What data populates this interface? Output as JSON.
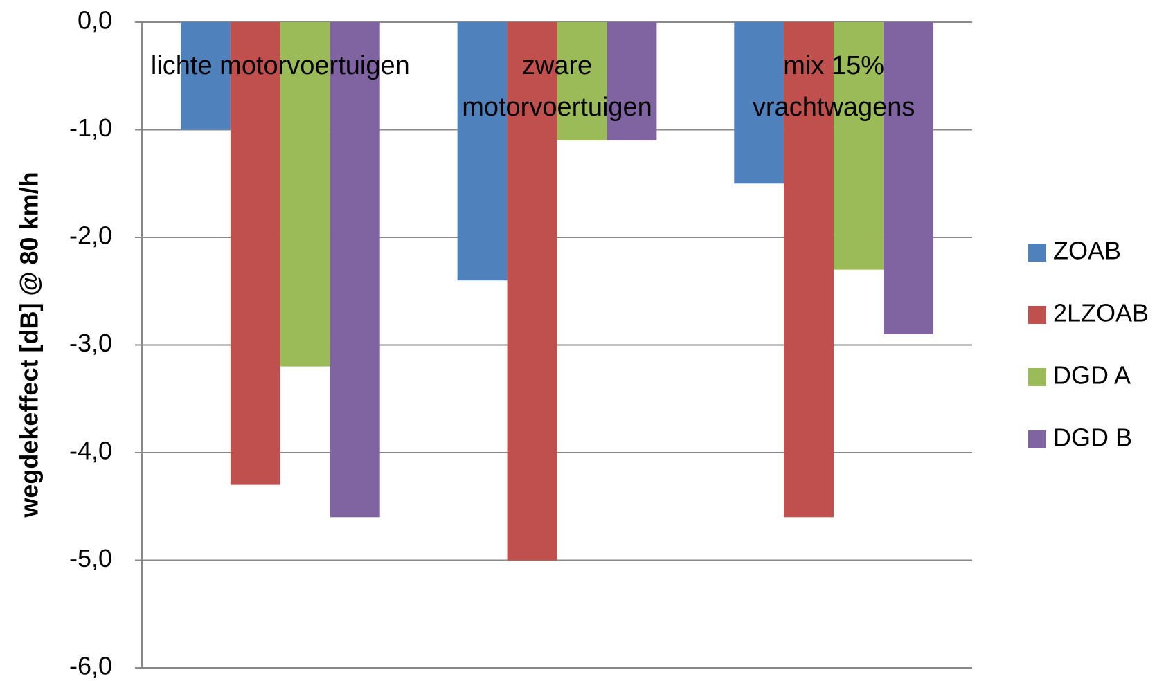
{
  "chart_data": {
    "type": "bar",
    "ylabel": "wegdekeffect [dB] @ 80 km/h",
    "categories": [
      "lichte motorvoertuigen",
      "zware motorvoertuigen",
      "mix 15% vrachtwagens"
    ],
    "series": [
      {
        "name": "ZOAB",
        "color": "#4f81bd",
        "values": [
          -1.0,
          -2.4,
          -1.5
        ]
      },
      {
        "name": "2LZOAB",
        "color": "#c0504d",
        "values": [
          -4.3,
          -5.0,
          -4.6
        ]
      },
      {
        "name": "DGD A",
        "color": "#9bbb59",
        "values": [
          -3.2,
          -1.1,
          -2.3
        ]
      },
      {
        "name": "DGD B",
        "color": "#8064a2",
        "values": [
          -4.6,
          -1.1,
          -2.9
        ]
      }
    ],
    "ylim": [
      -6,
      0
    ],
    "yticks": [
      {
        "value": 0,
        "label": "0,0"
      },
      {
        "value": -1,
        "label": "-1,0"
      },
      {
        "value": -2,
        "label": "-2,0"
      },
      {
        "value": -3,
        "label": "-3,0"
      },
      {
        "value": -4,
        "label": "-4,0"
      },
      {
        "value": -5,
        "label": "-5,0"
      },
      {
        "value": -6,
        "label": "-6,0"
      }
    ],
    "grid": true,
    "legend": "right"
  }
}
